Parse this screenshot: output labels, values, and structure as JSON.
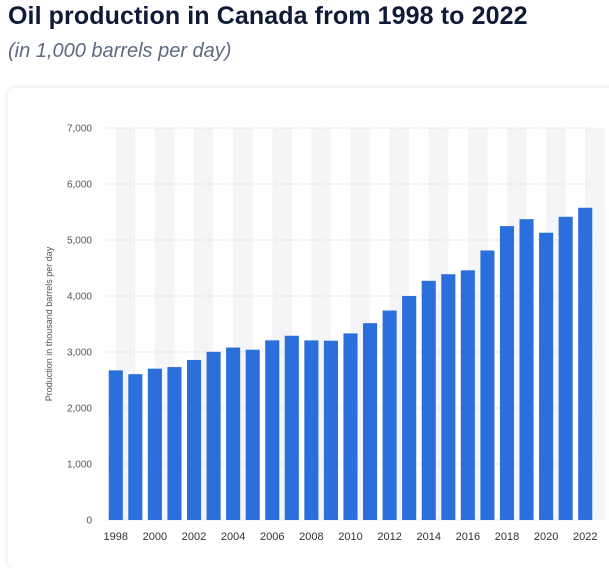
{
  "chart_data": {
    "type": "bar",
    "title": "Oil production in Canada from 1998 to 2022",
    "subtitle": "(in 1,000 barrels per day)",
    "xlabel": "",
    "ylabel": "Production in thousand barrels per day",
    "ylim": [
      0,
      7000
    ],
    "yticks": [
      0,
      1000,
      2000,
      3000,
      4000,
      5000,
      6000,
      7000
    ],
    "ytick_labels": [
      "0",
      "1,000",
      "2,000",
      "3,000",
      "4,000",
      "5,000",
      "6,000",
      "7,000"
    ],
    "categories": [
      "1998",
      "1999",
      "2000",
      "2001",
      "2002",
      "2003",
      "2004",
      "2005",
      "2006",
      "2007",
      "2008",
      "2009",
      "2010",
      "2011",
      "2012",
      "2013",
      "2014",
      "2015",
      "2016",
      "2017",
      "2018",
      "2019",
      "2020",
      "2021",
      "2022"
    ],
    "xtick_labels": [
      "1998",
      "",
      "2000",
      "",
      "2002",
      "",
      "2004",
      "",
      "2006",
      "",
      "2008",
      "",
      "2010",
      "",
      "2012",
      "",
      "2014",
      "",
      "2016",
      "",
      "2018",
      "",
      "2020",
      "",
      "2022"
    ],
    "values": [
      2672,
      2604,
      2703,
      2731,
      2858,
      3003,
      3080,
      3041,
      3208,
      3290,
      3207,
      3202,
      3332,
      3515,
      3740,
      4000,
      4271,
      4389,
      4459,
      4813,
      5248,
      5372,
      5130,
      5415,
      5576
    ],
    "grid": true,
    "bar_color": "#2b6fdd"
  }
}
